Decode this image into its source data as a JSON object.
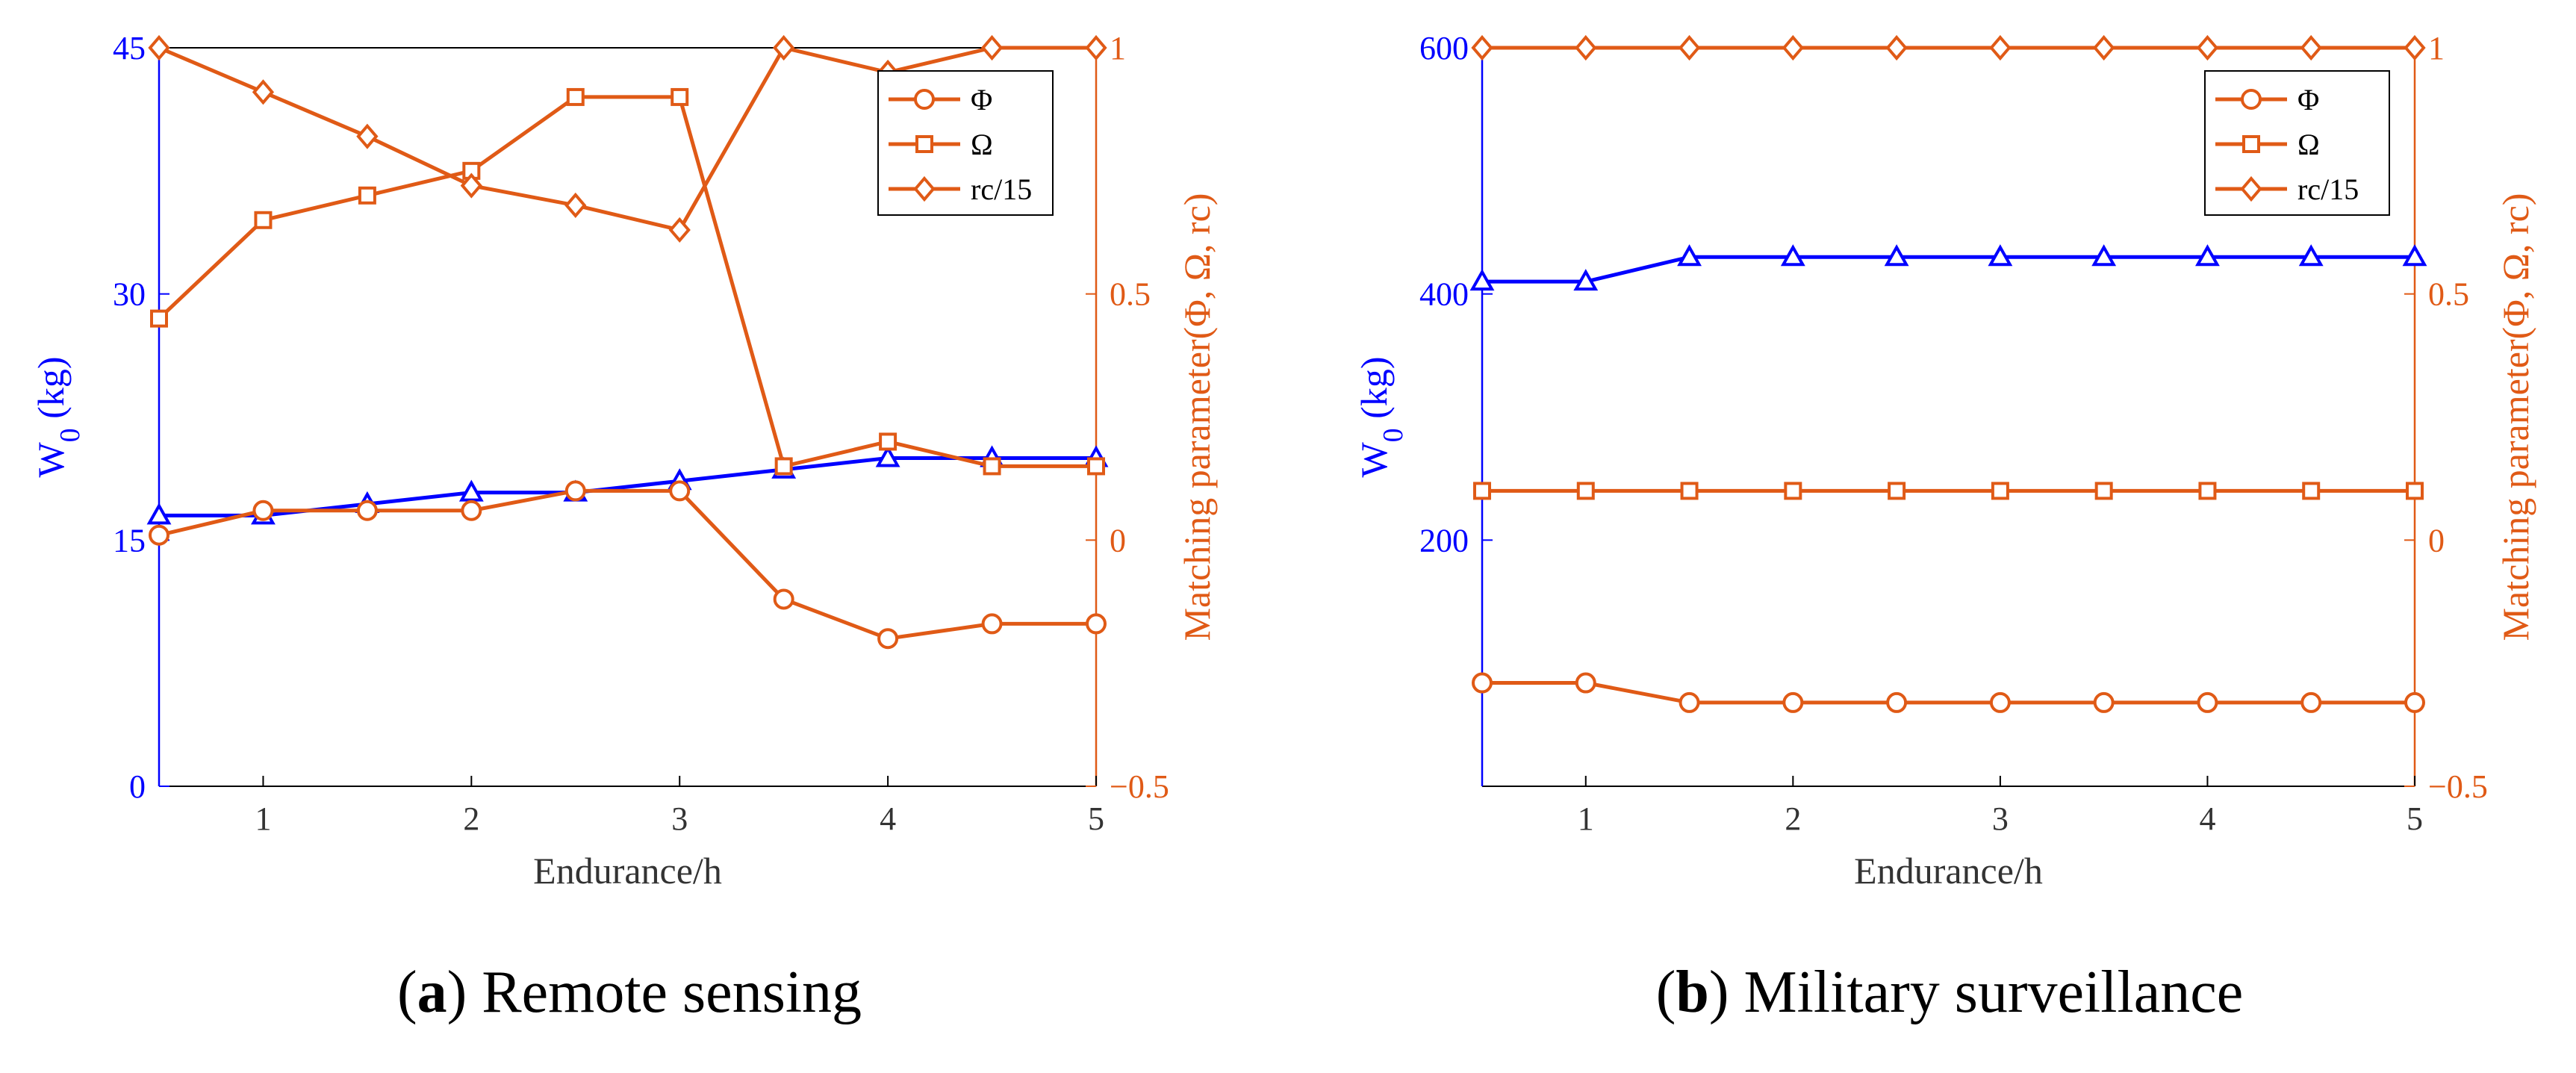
{
  "colors": {
    "primary": "#0000ff",
    "secondary": "#e05a16",
    "axis": "#000000",
    "caption": "#000000"
  },
  "chart_data": [
    {
      "type": "line",
      "panel_label": "a",
      "caption": "Remote sensing",
      "xlabel": "Endurance/h",
      "ylabel_main": "W",
      "ylabel_sub": "0",
      "ylabel_unit": " (kg)",
      "ylabel_right": "Matching parameter(Φ, Ω, rc)",
      "xlim": [
        0.5,
        5
      ],
      "x_ticks": [
        "1",
        "2",
        "3",
        "4",
        "5"
      ],
      "y_left_lim": [
        0,
        45
      ],
      "y_left_ticks": [
        "0",
        "15",
        "30",
        "45"
      ],
      "y_right_lim": [
        -0.5,
        1
      ],
      "y_right_ticks": [
        "−0.5",
        "0",
        "0.5",
        "1"
      ],
      "x": [
        0.5,
        1,
        1.5,
        2,
        2.5,
        3,
        3.5,
        4,
        4.5,
        5
      ],
      "legend": [
        "Φ",
        "Ω",
        "rc/15"
      ],
      "legend_position": "top-right",
      "series_left": {
        "name": "W0",
        "marker": "triangle",
        "values": [
          16.5,
          16.5,
          17.2,
          17.9,
          17.9,
          18.6,
          19.3,
          20.0,
          20.0,
          20.0
        ]
      },
      "series_right": [
        {
          "name": "Φ",
          "marker": "circle",
          "values": [
            0.01,
            0.06,
            0.06,
            0.06,
            0.1,
            0.1,
            -0.12,
            -0.2,
            -0.17,
            -0.17
          ]
        },
        {
          "name": "Ω",
          "marker": "square",
          "values": [
            0.45,
            0.65,
            0.7,
            0.75,
            0.9,
            0.9,
            0.15,
            0.2,
            0.15,
            0.15
          ]
        },
        {
          "name": "rc/15",
          "marker": "diamond",
          "values": [
            1.0,
            0.91,
            0.82,
            0.72,
            0.68,
            0.63,
            1.0,
            0.95,
            1.0,
            1.0
          ]
        }
      ]
    },
    {
      "type": "line",
      "panel_label": "b",
      "caption": "Military surveillance",
      "xlabel": "Endurance/h",
      "ylabel_main": "W",
      "ylabel_sub": "0",
      "ylabel_unit": " (kg)",
      "ylabel_right": "Matching parameter(Φ, Ω, rc)",
      "xlim": [
        0.5,
        5
      ],
      "x_ticks": [
        "1",
        "2",
        "3",
        "4",
        "5"
      ],
      "y_left_lim": [
        0,
        600
      ],
      "y_left_ticks": [
        "200",
        "400",
        "600"
      ],
      "y_right_lim": [
        -0.5,
        1
      ],
      "y_right_ticks": [
        "−0.5",
        "0",
        "0.5",
        "1"
      ],
      "x": [
        0.5,
        1,
        1.5,
        2,
        2.5,
        3,
        3.5,
        4,
        4.5,
        5
      ],
      "legend": [
        "Φ",
        "Ω",
        "rc/15"
      ],
      "legend_position": "top-right",
      "series_left": {
        "name": "W0",
        "marker": "triangle",
        "values": [
          410,
          410,
          430,
          430,
          430,
          430,
          430,
          430,
          430,
          430
        ]
      },
      "series_right": [
        {
          "name": "Φ",
          "marker": "circle",
          "values": [
            -0.29,
            -0.29,
            -0.33,
            -0.33,
            -0.33,
            -0.33,
            -0.33,
            -0.33,
            -0.33,
            -0.33
          ]
        },
        {
          "name": "Ω",
          "marker": "square",
          "values": [
            0.1,
            0.1,
            0.1,
            0.1,
            0.1,
            0.1,
            0.1,
            0.1,
            0.1,
            0.1
          ]
        },
        {
          "name": "rc/15",
          "marker": "diamond",
          "values": [
            1,
            1,
            1,
            1,
            1,
            1,
            1,
            1,
            1,
            1
          ]
        }
      ]
    }
  ]
}
